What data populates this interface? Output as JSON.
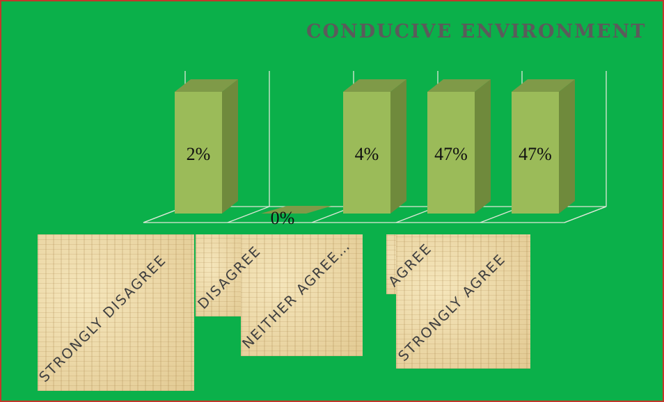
{
  "chart_data": {
    "type": "bar",
    "title": "CONDUCIVE ENVIRONMENT",
    "categories": [
      "STRONGLY DISAGREE",
      "DISAGREE",
      "NEITHER AGREE…",
      "AGREE",
      "STRONGLY AGREE"
    ],
    "values": [
      2,
      0,
      4,
      47,
      47
    ],
    "data_labels": [
      "2%",
      "0%",
      "4%",
      "47%",
      "47%"
    ],
    "xlabel": "",
    "ylabel": "",
    "grid": true,
    "legend": "none",
    "colors": {
      "background": "#0bb04a",
      "bar_front": "#9bbb59",
      "bar_side": "#6f8a3c",
      "bar_top": "#7f9a48",
      "grid": "#dfe7d8",
      "border": "#c0392b",
      "title": "#5b5b5b"
    }
  }
}
